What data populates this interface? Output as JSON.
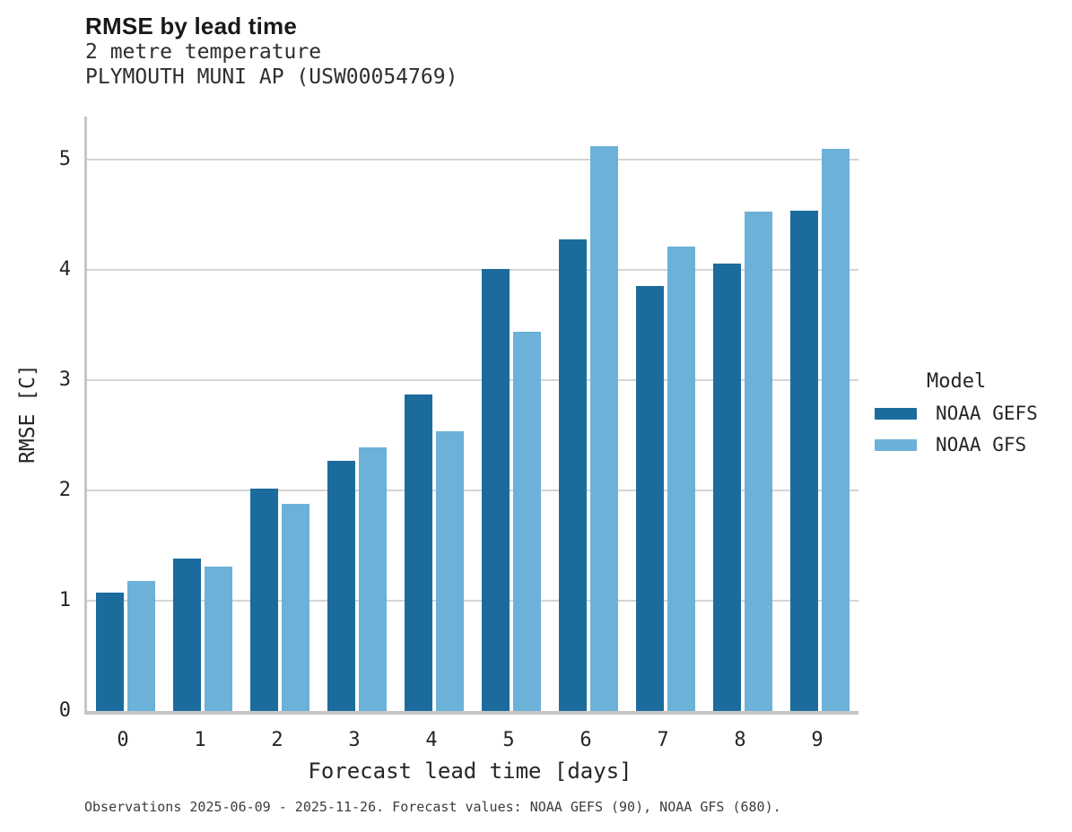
{
  "header": {
    "title": "RMSE by lead time",
    "subtitle_variable": "2 metre temperature",
    "subtitle_station": "PLYMOUTH MUNI AP (USW00054769)"
  },
  "chart_data": {
    "type": "bar",
    "title": "RMSE by lead time",
    "subtitle": [
      "2 metre temperature",
      "PLYMOUTH MUNI AP (USW00054769)"
    ],
    "categories": [
      "0",
      "1",
      "2",
      "3",
      "4",
      "5",
      "6",
      "7",
      "8",
      "9"
    ],
    "series": [
      {
        "name": "NOAA GEFS",
        "color": "#1b6c9d",
        "values": [
          1.07,
          1.38,
          2.02,
          2.27,
          2.87,
          4.01,
          4.28,
          3.85,
          4.06,
          4.54
        ]
      },
      {
        "name": "NOAA GFS",
        "color": "#6cb1d8",
        "values": [
          1.18,
          1.31,
          1.88,
          2.39,
          2.54,
          3.44,
          5.12,
          4.21,
          4.53,
          5.1
        ]
      }
    ],
    "xlabel": "Forecast lead time [days]",
    "ylabel": "RMSE [C]",
    "ylim": [
      0,
      5.39
    ],
    "yticks": [
      0,
      1,
      2,
      3,
      4,
      5
    ],
    "grid": true,
    "legend_title": "Model",
    "legend_position": "right"
  },
  "footer": {
    "text": "Observations 2025-06-09 - 2025-11-26. Forecast values: NOAA GEFS (90), NOAA GFS (680)."
  },
  "colors": {
    "gefs_bar": "#1b6c9d",
    "gfs_bar": "#6cb1d8",
    "gridline": "#d4d4d4",
    "axis": "#c6c6c6",
    "text": "#262626"
  }
}
